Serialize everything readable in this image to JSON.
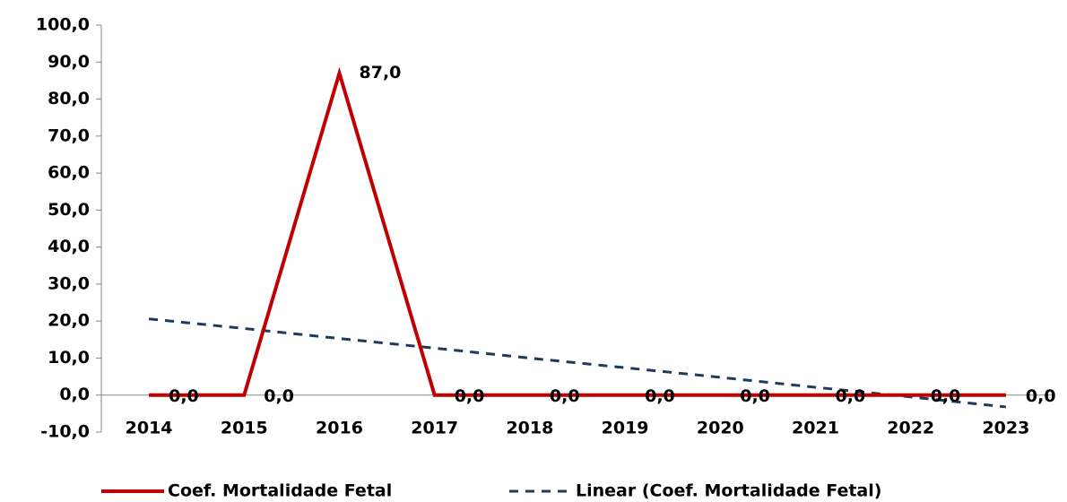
{
  "chart_data": {
    "type": "line",
    "categories": [
      "2014",
      "2015",
      "2016",
      "2017",
      "2018",
      "2019",
      "2020",
      "2021",
      "2022",
      "2023"
    ],
    "series": [
      {
        "name": "Coef. Mortalidade Fetal",
        "color": "#c00000",
        "style": "solid",
        "values": [
          0,
          0,
          87,
          0,
          0,
          0,
          0,
          0,
          0,
          0
        ],
        "value_labels": [
          "0,0",
          "0,0",
          "87,0",
          "0,0",
          "0,0",
          "0,0",
          "0,0",
          "0,0",
          "0,0",
          "0,0"
        ]
      },
      {
        "name": "Linear (Coef. Mortalidade Fetal)",
        "color": "#1f3a5a",
        "style": "dashed",
        "values": [
          20.6,
          18.0,
          15.3,
          12.7,
          10.0,
          7.4,
          4.8,
          2.1,
          -0.5,
          -3.2
        ]
      }
    ],
    "ylim": [
      -10,
      100
    ],
    "yticks": [
      {
        "value": -10,
        "label": "-10,0"
      },
      {
        "value": 0,
        "label": "0,0"
      },
      {
        "value": 10,
        "label": "10,0"
      },
      {
        "value": 20,
        "label": "20,0"
      },
      {
        "value": 30,
        "label": "30,0"
      },
      {
        "value": 40,
        "label": "40,0"
      },
      {
        "value": 50,
        "label": "50,0"
      },
      {
        "value": 60,
        "label": "60,0"
      },
      {
        "value": 70,
        "label": "70,0"
      },
      {
        "value": 80,
        "label": "80,0"
      },
      {
        "value": 90,
        "label": "90,0"
      },
      {
        "value": 100,
        "label": "100,0"
      }
    ],
    "grid": false,
    "legend": "bottom"
  }
}
